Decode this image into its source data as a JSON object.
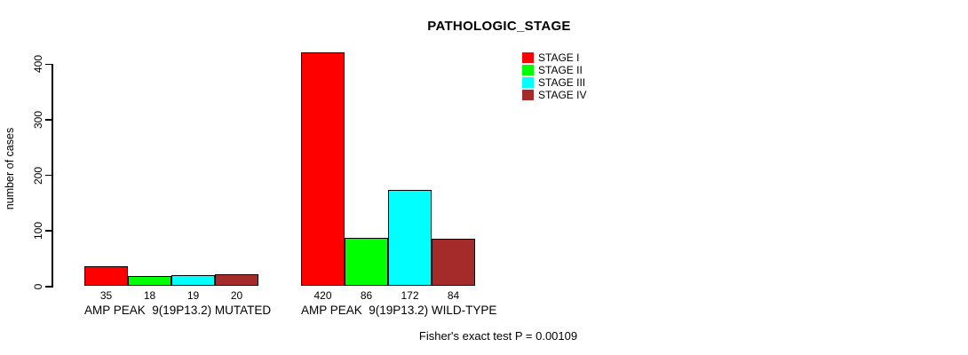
{
  "chart_data": {
    "type": "bar",
    "title": "PATHOLOGIC_STAGE",
    "ylabel": "number of cases",
    "xlabel": "",
    "ylim": [
      0,
      400
    ],
    "yticks": [
      0,
      100,
      200,
      300,
      400
    ],
    "grid": false,
    "legend_position": "top-right",
    "categories": [
      "AMP PEAK  9(19P13.2) MUTATED",
      "AMP PEAK  9(19P13.2) WILD-TYPE"
    ],
    "series": [
      {
        "name": "STAGE I",
        "color": "#FF0000",
        "values": [
          35,
          420
        ]
      },
      {
        "name": "STAGE II",
        "color": "#00FF00",
        "values": [
          18,
          86
        ]
      },
      {
        "name": "STAGE III",
        "color": "#00FFFF",
        "values": [
          19,
          172
        ]
      },
      {
        "name": "STAGE IV",
        "color": "#A52A2A",
        "values": [
          20,
          84
        ]
      }
    ],
    "annotation": "Fisher's exact test P = 0.00109"
  },
  "colors": {
    "axis": "#000000",
    "bar_border": "#000000",
    "background": "#FFFFFF"
  }
}
